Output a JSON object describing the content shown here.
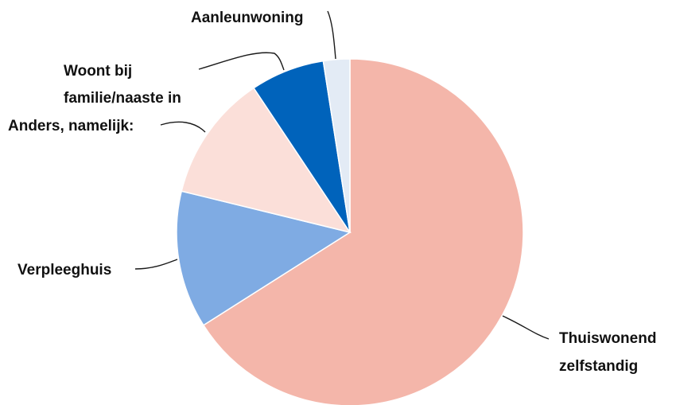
{
  "chart_data": {
    "type": "pie",
    "title": "",
    "slices": [
      {
        "label_lines": [
          "Thuiswonend",
          "zelfstandig"
        ],
        "value": 67,
        "color": "#f4b6aa"
      },
      {
        "label_lines": [
          "Verpleeghuis"
        ],
        "value": 13,
        "color": "#7fabe3"
      },
      {
        "label_lines": [
          "Anders, namelijk:"
        ],
        "value": 12,
        "color": "#fbdfd9"
      },
      {
        "label_lines": [
          "Woont bij",
          "familie/naaste in"
        ],
        "value": 7,
        "color": "#0063bb"
      },
      {
        "label_lines": [
          "Aanleunwoning"
        ],
        "value": 2.5,
        "color": "#e3ebf5"
      }
    ],
    "start_angle": "12 o'clock",
    "direction": "clockwise",
    "legend": "none (slice labels with leader lines)"
  }
}
